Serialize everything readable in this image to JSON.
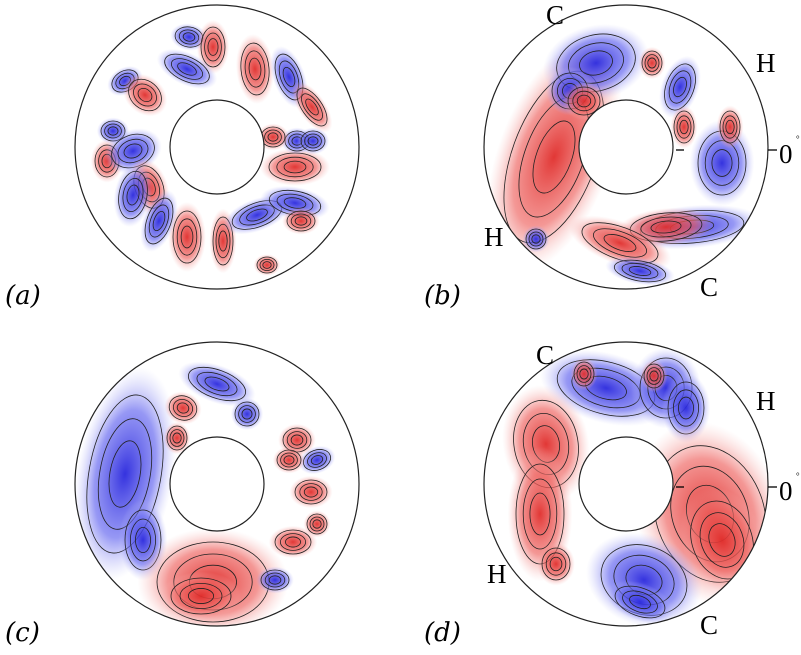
{
  "colors": {
    "positive": "#e8413f",
    "negative": "#3d3ee6",
    "background": "#ffffff",
    "contour": "#222222"
  },
  "panels": [
    {
      "id": "a",
      "label": "(a)",
      "annotations": []
    },
    {
      "id": "b",
      "label": "(b)",
      "annotations": [
        {
          "key": "c_top",
          "text": "C"
        },
        {
          "key": "h_right",
          "text": "H"
        },
        {
          "key": "zero",
          "text": "0"
        },
        {
          "key": "degree",
          "text": "°"
        },
        {
          "key": "h_left",
          "text": "H"
        },
        {
          "key": "c_bottom",
          "text": "C"
        }
      ]
    },
    {
      "id": "c",
      "label": "(c)",
      "annotations": []
    },
    {
      "id": "d",
      "label": "(d)",
      "annotations": [
        {
          "key": "c_top",
          "text": "C"
        },
        {
          "key": "h_right",
          "text": "H"
        },
        {
          "key": "zero",
          "text": "0"
        },
        {
          "key": "degree",
          "text": "°"
        },
        {
          "key": "h_left",
          "text": "H"
        },
        {
          "key": "c_bottom",
          "text": "C"
        }
      ]
    }
  ]
}
